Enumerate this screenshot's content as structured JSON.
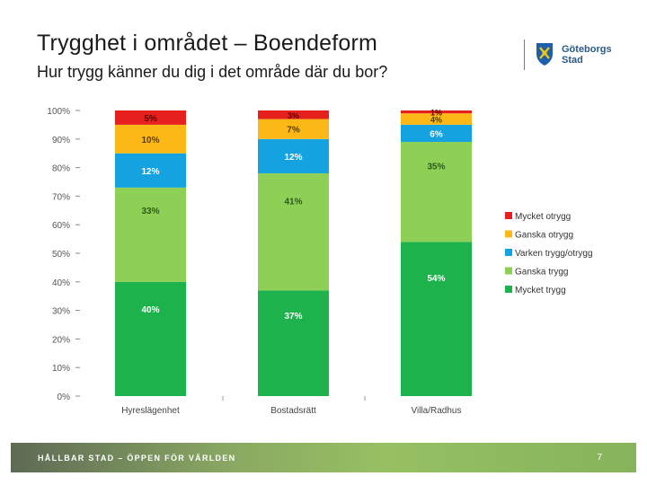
{
  "slide": {
    "title": "Trygghet i området – Boendeform",
    "subtitle": "Hur trygg känner du dig i det område där du bor?",
    "logo_line1": "Göteborgs",
    "logo_line2": "Stad",
    "footer_text": "HÅLLBAR STAD – ÖPPEN FÖR VÄRLDEN",
    "page_number": "7"
  },
  "chart_data": {
    "type": "bar",
    "stacked": true,
    "categories": [
      "Hyreslägenhet",
      "Bostadsrätt",
      "Villa/Radhus"
    ],
    "y_ticks": [
      "0%",
      "10%",
      "20%",
      "30%",
      "40%",
      "50%",
      "60%",
      "70%",
      "80%",
      "90%",
      "100%"
    ],
    "ylim": [
      0,
      100
    ],
    "legend_position": "right",
    "series": [
      {
        "name": "Mycket trygg",
        "color": "#1db24b",
        "values": [
          40,
          37,
          54
        ],
        "labels": [
          "40%",
          "37%",
          "54%"
        ]
      },
      {
        "name": "Ganska trygg",
        "color": "#8ecf55",
        "values": [
          33,
          41,
          35
        ],
        "labels": [
          "33%",
          "41%",
          "35%"
        ]
      },
      {
        "name": "Varken trygg/otrygg",
        "color": "#14a3e0",
        "values": [
          12,
          12,
          6
        ],
        "labels": [
          "12%",
          "12%",
          "6%"
        ]
      },
      {
        "name": "Ganska otrygg",
        "color": "#fbb816",
        "values": [
          10,
          7,
          4
        ],
        "labels": [
          "10%",
          "7%",
          "4%"
        ]
      },
      {
        "name": "Mycket otrygg",
        "color": "#e5201d",
        "values": [
          5,
          3,
          1
        ],
        "labels": [
          "5%",
          "3%",
          "1%"
        ]
      }
    ]
  }
}
